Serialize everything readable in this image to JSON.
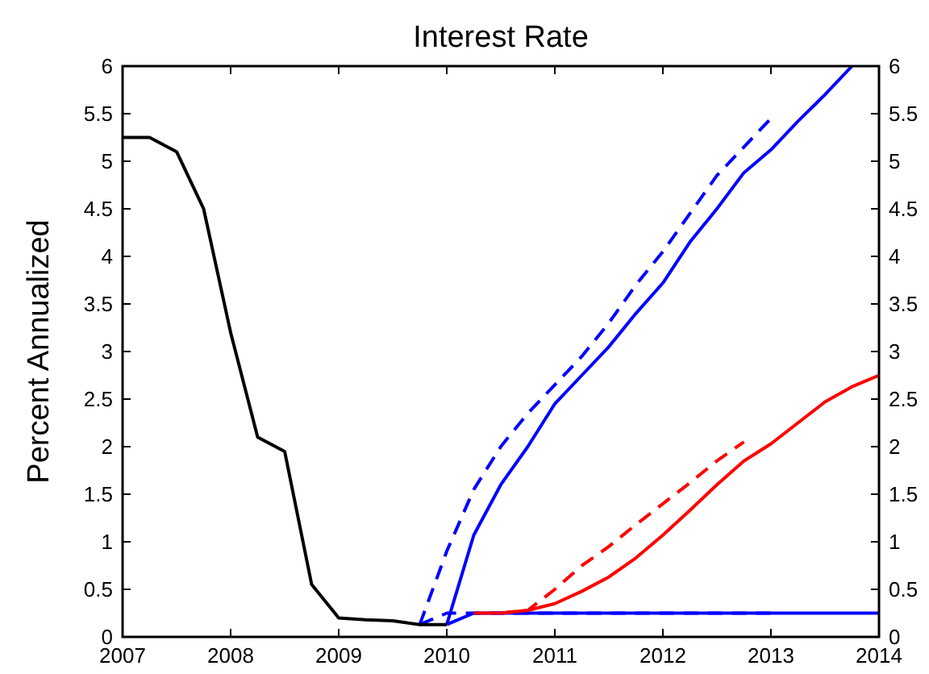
{
  "chart_data": {
    "type": "line",
    "title": "Interest Rate",
    "ylabel": "Percent Annualized",
    "xlim": [
      2007,
      2014
    ],
    "xticks": [
      2007,
      2008,
      2009,
      2010,
      2011,
      2012,
      2013,
      2014
    ],
    "ylim": [
      0,
      6
    ],
    "yticks": [
      0,
      0.5,
      1,
      1.5,
      2,
      2.5,
      3,
      3.5,
      4,
      4.5,
      5,
      5.5,
      6
    ],
    "y2lim": [
      0,
      6
    ],
    "y2ticks": [
      0,
      0.5,
      1,
      1.5,
      2,
      2.5,
      3,
      3.5,
      4,
      4.5,
      5,
      5.5,
      6
    ],
    "marker": "none",
    "series": [
      {
        "color": "#0000ff",
        "line_style": "dashed",
        "x": [
          2009.75,
          2010,
          2010.5,
          2011,
          2011.5,
          2012,
          2012.5,
          2013
        ],
        "values": [
          0.13,
          0.25,
          0.25,
          0.25,
          0.25,
          0.25,
          0.25,
          0.25
        ]
      },
      {
        "color": "#0000ff",
        "line_style": "solid",
        "x": [
          2010,
          2010.25,
          2010.5,
          2011,
          2011.5,
          2012,
          2012.5,
          2013,
          2013.5,
          2014
        ],
        "values": [
          0.13,
          0.25,
          0.25,
          0.25,
          0.25,
          0.25,
          0.25,
          0.25,
          0.25,
          0.25
        ]
      },
      {
        "color": "#ff0000",
        "line_style": "dashed",
        "x": [
          2010.5,
          2010.75,
          2011,
          2011.25,
          2011.5,
          2011.75,
          2012,
          2012.25,
          2012.5,
          2012.75
        ],
        "values": [
          0.25,
          0.28,
          0.5,
          0.75,
          0.95,
          1.18,
          1.4,
          1.62,
          1.85,
          2.05
        ]
      },
      {
        "color": "#ff0000",
        "line_style": "solid",
        "x": [
          2010.25,
          2010.5,
          2010.75,
          2011,
          2011.25,
          2011.5,
          2011.75,
          2012,
          2012.25,
          2012.5,
          2012.75,
          2013,
          2013.25,
          2013.5,
          2013.75,
          2014
        ],
        "values": [
          0.25,
          0.25,
          0.28,
          0.35,
          0.48,
          0.63,
          0.83,
          1.07,
          1.33,
          1.6,
          1.85,
          2.03,
          2.25,
          2.47,
          2.63,
          2.75
        ]
      },
      {
        "color": "#0000ff",
        "line_style": "dashed",
        "x": [
          2009.75,
          2010,
          2010.25,
          2010.5,
          2010.75,
          2011,
          2011.25,
          2011.5,
          2011.75,
          2012,
          2012.25,
          2012.5,
          2012.75,
          2013
        ],
        "values": [
          0.13,
          0.9,
          1.55,
          2.0,
          2.35,
          2.65,
          2.95,
          3.3,
          3.7,
          4.05,
          4.45,
          4.85,
          5.15,
          5.45
        ]
      },
      {
        "color": "#0000ff",
        "line_style": "solid",
        "x": [
          2010,
          2010.25,
          2010.5,
          2010.75,
          2011,
          2011.25,
          2011.5,
          2011.75,
          2012,
          2012.25,
          2012.5,
          2012.75,
          2013,
          2013.25,
          2013.5,
          2013.75
        ],
        "values": [
          0.13,
          1.07,
          1.6,
          2.0,
          2.45,
          2.75,
          3.05,
          3.4,
          3.72,
          4.15,
          4.5,
          4.88,
          5.12,
          5.42,
          5.7,
          6.0
        ]
      },
      {
        "color": "#000000",
        "line_style": "solid",
        "x": [
          2007,
          2007.25,
          2007.5,
          2007.75,
          2008,
          2008.25,
          2008.5,
          2008.75,
          2009,
          2009.25,
          2009.5,
          2009.75,
          2010
        ],
        "values": [
          5.25,
          5.25,
          5.1,
          4.5,
          3.2,
          2.1,
          1.95,
          0.55,
          0.2,
          0.18,
          0.17,
          0.13,
          0.13
        ]
      }
    ]
  }
}
